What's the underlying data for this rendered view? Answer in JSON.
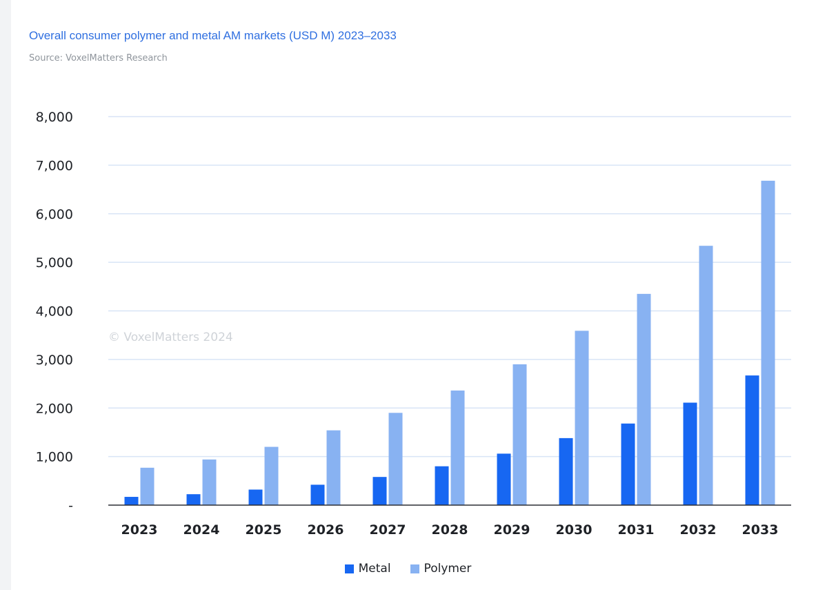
{
  "title": "Overall consumer polymer and metal AM markets (USD M) 2023–2033",
  "source": "Source: VoxelMatters Research",
  "watermark": "© VoxelMatters 2024",
  "colors": {
    "metal": "#1767f2",
    "polymer": "#88b2f2",
    "grid": "#d8e4f6",
    "axis": "#2a2d33"
  },
  "chart_data": {
    "type": "bar",
    "title": "Overall consumer polymer and metal AM markets (USD M) 2023–2033",
    "categories": [
      "2023",
      "2024",
      "2025",
      "2026",
      "2027",
      "2028",
      "2029",
      "2030",
      "2031",
      "2032",
      "2033"
    ],
    "series": [
      {
        "name": "Metal",
        "values": [
          170,
          225,
          320,
          420,
          580,
          800,
          1060,
          1380,
          1680,
          2110,
          2670
        ]
      },
      {
        "name": "Polymer",
        "values": [
          770,
          940,
          1200,
          1540,
          1900,
          2360,
          2900,
          3590,
          4350,
          5340,
          6680
        ]
      }
    ],
    "yticks": [
      "-",
      "1,000",
      "2,000",
      "3,000",
      "4,000",
      "5,000",
      "6,000",
      "7,000",
      "8,000"
    ],
    "ylim": [
      0,
      8000
    ],
    "ystep": 1000,
    "grid": true,
    "legend_position": "bottom"
  },
  "legend": {
    "metal_label": "Metal",
    "polymer_label": "Polymer"
  }
}
